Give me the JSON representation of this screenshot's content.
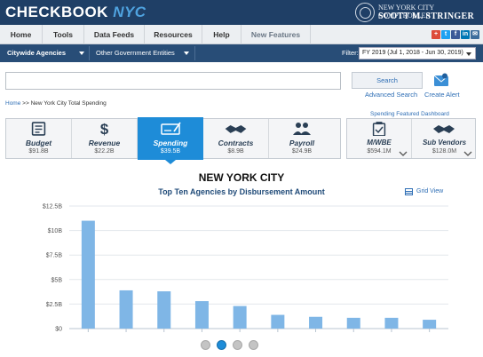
{
  "header": {
    "logo_main": "CHECKBOOK",
    "logo_accent": "NYC",
    "comptroller_line1": "NEW YORK CITY COMPTROLLER",
    "comptroller_line2": "SCOTT M. STRINGER"
  },
  "nav": {
    "items": [
      "Home",
      "Tools",
      "Data Feeds",
      "Resources",
      "Help",
      "New Features"
    ]
  },
  "social": [
    "+",
    "t",
    "f",
    "in",
    "✉"
  ],
  "subnav": {
    "citywide": "Citywide Agencies",
    "other": "Other Government Entities",
    "filter_label": "Filter:",
    "filter_value": "FY 2019 (Jul 1, 2018 - Jun 30, 2019)"
  },
  "search": {
    "placeholder": "",
    "button": "Search",
    "advanced": "Advanced Search",
    "alert": "Create Alert"
  },
  "breadcrumb": {
    "home": "Home",
    "sep": " >> ",
    "current": "New York City Total Spending"
  },
  "featured_link": "Spending Featured Dashboard",
  "widgets": [
    {
      "label": "Budget",
      "value": "$91.8B",
      "icon": "budget-icon"
    },
    {
      "label": "Revenue",
      "value": "$22.2B",
      "icon": "dollar-icon"
    },
    {
      "label": "Spending",
      "value": "$39.5B",
      "icon": "check-icon"
    },
    {
      "label": "Contracts",
      "value": "$8.9B",
      "icon": "handshake-icon"
    },
    {
      "label": "Payroll",
      "value": "$24.9B",
      "icon": "people-icon"
    }
  ],
  "widgets2": [
    {
      "label": "M/WBE",
      "value": "$594.1M",
      "icon": "clipboard-icon"
    },
    {
      "label": "Sub Vendors",
      "value": "$128.0M",
      "icon": "handshake-icon"
    }
  ],
  "page_heading": "NEW YORK CITY",
  "grid_view": "Grid View",
  "chart_data": {
    "type": "bar",
    "title": "Top Ten Agencies by Disbursement Amount",
    "xlabel": "",
    "ylabel": "",
    "ylim": [
      0,
      12.5
    ],
    "y_ticks": [
      "$0",
      "$2.5B",
      "$5B",
      "$7.5B",
      "$10B",
      "$12.5B"
    ],
    "y_tick_values": [
      0,
      2.5,
      5,
      7.5,
      10,
      12.5
    ],
    "values": [
      11.0,
      3.9,
      3.8,
      2.8,
      2.3,
      1.4,
      1.2,
      1.1,
      1.1,
      0.9
    ],
    "grid": true,
    "bar_color": "#7fb6e6"
  },
  "pagination": {
    "count": 4,
    "active": 1
  }
}
